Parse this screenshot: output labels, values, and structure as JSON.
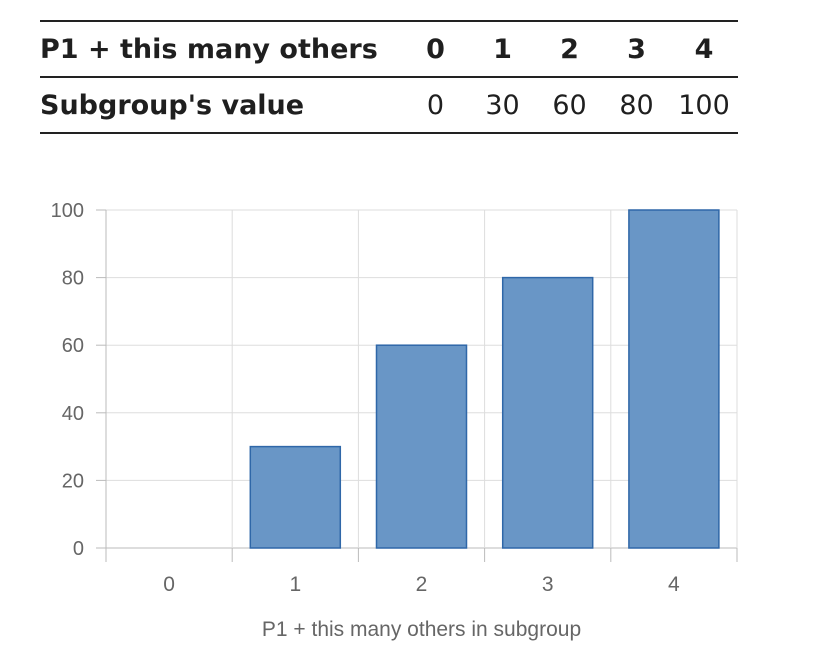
{
  "table": {
    "header_label": "P1 + this many others",
    "value_label": "Subgroup's value",
    "headers": [
      "0",
      "1",
      "2",
      "3",
      "4"
    ],
    "values": [
      "0",
      "30",
      "60",
      "80",
      "100"
    ]
  },
  "chart_data": {
    "type": "bar",
    "title": "",
    "categories": [
      "0",
      "1",
      "2",
      "3",
      "4"
    ],
    "series": [
      {
        "name": "Subgroup's value",
        "values": [
          0,
          30,
          60,
          80,
          100
        ]
      }
    ],
    "xlabel": "P1 + this many others in subgroup",
    "ylabel": "",
    "ylim": [
      0,
      100
    ],
    "yticks": [
      0,
      20,
      40,
      60,
      80,
      100
    ],
    "grid": true,
    "colors": {
      "bar_fill": "#6996c6",
      "bar_stroke": "#2f67a8",
      "grid": "#dddddd",
      "text": "#666666"
    }
  }
}
